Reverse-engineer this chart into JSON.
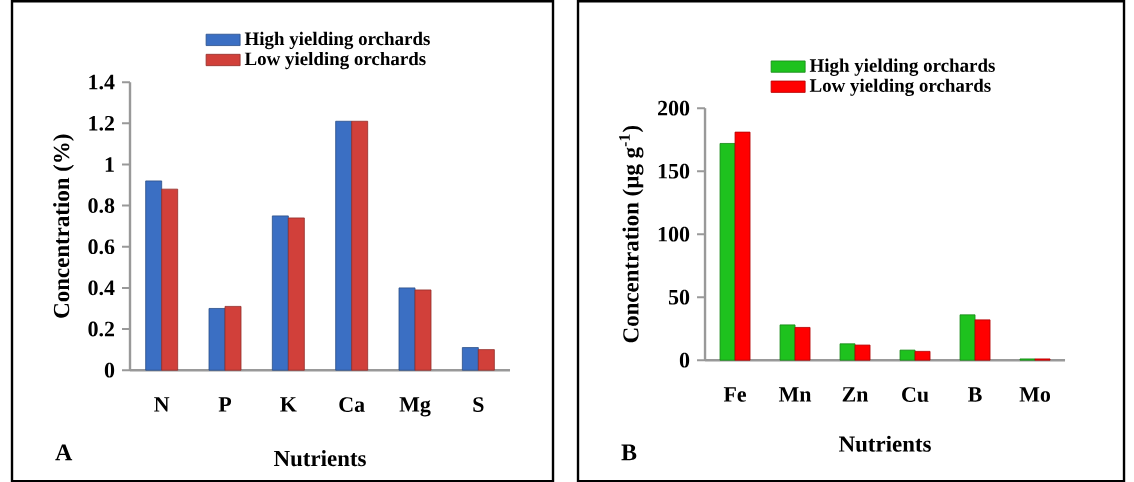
{
  "chart_data": [
    {
      "type": "bar",
      "xlabel": "Nutrients",
      "ylabel": "Concentration (%)",
      "categories": [
        "N",
        "P",
        "K",
        "Ca",
        "Mg",
        "S"
      ],
      "series": [
        {
          "name": "High yielding orchards",
          "color": "#3b6fc3",
          "values": [
            0.92,
            0.3,
            0.75,
            1.21,
            0.4,
            0.11
          ]
        },
        {
          "name": "Low yielding orchards",
          "color": "#d1403a",
          "values": [
            0.88,
            0.31,
            0.74,
            1.21,
            0.39,
            0.1
          ]
        }
      ],
      "ylim": [
        0,
        1.4
      ],
      "yticks": [
        0,
        0.2,
        0.4,
        0.6,
        0.8,
        1,
        1.2,
        1.4
      ],
      "legend": "top",
      "grid": false,
      "annotations": [
        "A"
      ]
    },
    {
      "type": "bar",
      "xlabel": "Nutrients",
      "ylabel": "Concentration (µg g$^{-1}$)",
      "categories": [
        "Fe",
        "Mn",
        "Zn",
        "Cu",
        "B",
        "Mo"
      ],
      "series": [
        {
          "name": "High yielding orchards",
          "color": "#1ec21e",
          "values": [
            172,
            28,
            13,
            8,
            36,
            1
          ]
        },
        {
          "name": "Low yielding orchards",
          "color": "#ff0000",
          "values": [
            181,
            26,
            12,
            7,
            32,
            1
          ]
        }
      ],
      "ylim": [
        0,
        200
      ],
      "yticks": [
        0,
        50,
        100,
        150,
        200
      ],
      "legend": "top",
      "grid": false,
      "annotations": [
        "B"
      ]
    }
  ]
}
